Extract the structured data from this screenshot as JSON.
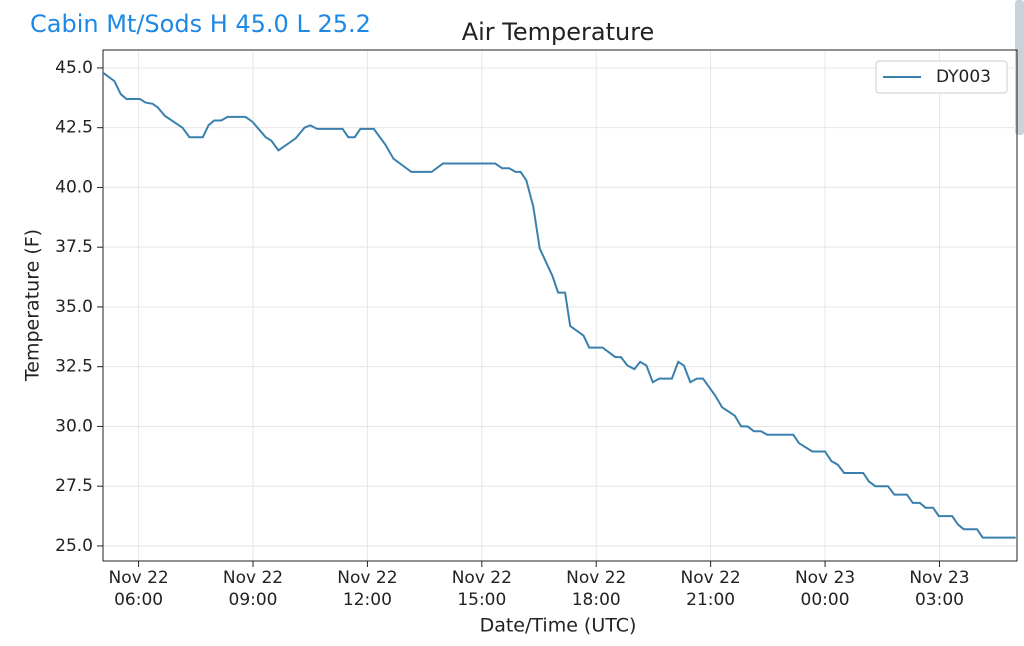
{
  "page_title": "Cabin Mt/Sods H 45.0 L 25.2",
  "chart_data": {
    "type": "line",
    "title": "Air Temperature",
    "x_label": "Date/Time (UTC)",
    "y_label": "Temperature (F)",
    "xlim": [
      "Nov 22 05:04",
      "Nov 23 05:02"
    ],
    "xticks": [
      "Nov 22 06:00",
      "Nov 22 09:00",
      "Nov 22 12:00",
      "Nov 22 15:00",
      "Nov 22 18:00",
      "Nov 22 21:00",
      "Nov 23 00:00",
      "Nov 23 03:00"
    ],
    "ylim": [
      24.37,
      45.75
    ],
    "yticks": [
      {
        "value": 25,
        "label": "25.0"
      },
      27.5,
      {
        "value": 30,
        "label": "30.0"
      },
      32.5,
      {
        "value": 35,
        "label": "35.0"
      },
      37.5,
      {
        "value": 40,
        "label": "40.0"
      },
      42.5,
      {
        "value": 45,
        "label": "45.0"
      }
    ],
    "grid": true,
    "legend": "upper right",
    "x": [
      "Nov 22 05:04",
      "Nov 22 05:22",
      "Nov 22 05:32",
      "Nov 22 05:41",
      "Nov 22 06:02",
      "Nov 22 06:11",
      "Nov 22 06:22",
      "Nov 22 06:30",
      "Nov 22 06:41",
      "Nov 22 07:09",
      "Nov 22 07:20",
      "Nov 22 07:41",
      "Nov 22 07:50",
      "Nov 22 07:59",
      "Nov 22 08:10",
      "Nov 22 08:20",
      "Nov 22 08:48",
      "Nov 22 08:59",
      "Nov 22 09:20",
      "Nov 22 09:29",
      "Nov 22 09:40",
      "Nov 22 10:07",
      "Nov 22 10:21",
      "Nov 22 10:30",
      "Nov 22 10:41",
      "Nov 22 11:21",
      "Nov 22 11:30",
      "Nov 22 11:40",
      "Nov 22 11:49",
      "Nov 22 12:10",
      "Nov 22 12:28",
      "Nov 22 12:41",
      "Nov 22 13:09",
      "Nov 22 13:41",
      "Nov 22 13:59",
      "Nov 22 15:21",
      "Nov 22 15:32",
      "Nov 22 15:43",
      "Nov 22 15:53",
      "Nov 22 16:01",
      "Nov 22 16:10",
      "Nov 22 16:21",
      "Nov 22 16:31",
      "Nov 22 16:51",
      "Nov 22 17:00",
      "Nov 22 17:11",
      "Nov 22 17:19",
      "Nov 22 17:40",
      "Nov 22 17:49",
      "Nov 22 18:10",
      "Nov 22 18:30",
      "Nov 22 18:39",
      "Nov 22 18:49",
      "Nov 22 19:00",
      "Nov 22 19:09",
      "Nov 22 19:19",
      "Nov 22 19:29",
      "Nov 22 19:39",
      "Nov 22 19:59",
      "Nov 22 20:09",
      "Nov 22 20:18",
      "Nov 22 20:28",
      "Nov 22 20:38",
      "Nov 22 20:48",
      "Nov 22 21:07",
      "Nov 22 21:18",
      "Nov 22 21:38",
      "Nov 22 21:48",
      "Nov 22 21:58",
      "Nov 22 22:08",
      "Nov 22 22:19",
      "Nov 22 22:29",
      "Nov 22 23:10",
      "Nov 22 23:19",
      "Nov 22 23:40",
      "Nov 23 00:00",
      "Nov 23 00:10",
      "Nov 23 00:20",
      "Nov 23 00:30",
      "Nov 23 01:00",
      "Nov 23 01:09",
      "Nov 23 01:19",
      "Nov 23 01:39",
      "Nov 23 01:49",
      "Nov 23 02:09",
      "Nov 23 02:18",
      "Nov 23 02:29",
      "Nov 23 02:38",
      "Nov 23 02:50",
      "Nov 23 02:59",
      "Nov 23 03:20",
      "Nov 23 03:29",
      "Nov 23 03:38",
      "Nov 23 03:59",
      "Nov 23 04:08",
      "Nov 23 05:00"
    ],
    "series": [
      {
        "name": "DY003",
        "color": "#3a80ad",
        "values": [
          44.8,
          44.45,
          43.9,
          43.7,
          43.7,
          43.55,
          43.5,
          43.35,
          43.0,
          42.5,
          42.1,
          42.1,
          42.6,
          42.8,
          42.8,
          42.95,
          42.95,
          42.75,
          42.1,
          41.95,
          41.55,
          42.05,
          42.5,
          42.6,
          42.45,
          42.45,
          42.1,
          42.1,
          42.45,
          42.45,
          41.8,
          41.2,
          40.65,
          40.65,
          41.0,
          41.0,
          40.8,
          40.8,
          40.65,
          40.65,
          40.3,
          39.2,
          37.45,
          36.3,
          35.6,
          35.6,
          34.2,
          33.8,
          33.3,
          33.3,
          32.9,
          32.9,
          32.55,
          32.4,
          32.7,
          32.55,
          31.85,
          32.0,
          32.0,
          32.7,
          32.55,
          31.85,
          32.0,
          32.0,
          31.3,
          30.8,
          30.45,
          30.0,
          30.0,
          29.8,
          29.8,
          29.65,
          29.65,
          29.3,
          28.95,
          28.95,
          28.55,
          28.4,
          28.05,
          28.05,
          27.7,
          27.5,
          27.5,
          27.15,
          27.15,
          26.8,
          26.8,
          26.6,
          26.6,
          26.25,
          26.25,
          25.9,
          25.7,
          25.7,
          25.35,
          25.35
        ]
      }
    ]
  }
}
